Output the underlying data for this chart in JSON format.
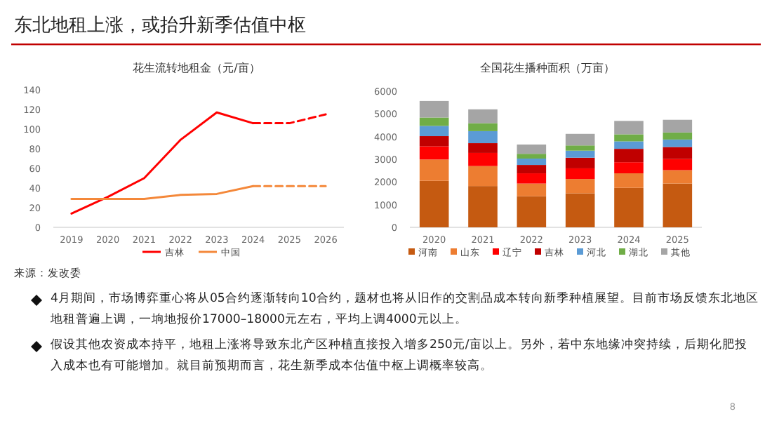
{
  "chart_data": [
    {
      "type": "line",
      "title": "花生流转地租金（元/亩）",
      "categories": [
        "2019",
        "2020",
        "2021",
        "2022",
        "2023",
        "2024",
        "2025",
        "2026"
      ],
      "series": [
        {
          "name": "吉林",
          "color": "#ff0000",
          "values": [
            14,
            31,
            50,
            89,
            117,
            106,
            null,
            null
          ]
        },
        {
          "color": "#ff0000",
          "line_style": "dashed",
          "values": [
            null,
            null,
            null,
            null,
            null,
            106,
            106,
            115
          ]
        },
        {
          "name": "中国",
          "color": "#f4883a",
          "values": [
            29,
            29,
            29,
            33,
            34,
            42,
            null,
            null
          ]
        },
        {
          "color": "#f4883a",
          "line_style": "dashed",
          "values": [
            null,
            null,
            null,
            null,
            null,
            42,
            42,
            42
          ]
        }
      ],
      "ylim": [
        0,
        140
      ],
      "yticks": [
        0,
        20,
        40,
        60,
        80,
        100,
        120,
        140
      ],
      "legend": "bottom",
      "marker": "none",
      "annotations": [
        "来源：发改委"
      ]
    },
    {
      "type": "bar",
      "title": "全国花生播种面积（万亩）",
      "categories": [
        "2020",
        "2021",
        "2022",
        "2023",
        "2024",
        "2025"
      ],
      "stacked": true,
      "series": [
        {
          "name": "河南",
          "color": "#c55a11",
          "values": [
            2050,
            1820,
            1370,
            1500,
            1740,
            1930
          ]
        },
        {
          "name": "山东",
          "color": "#ed7d31",
          "values": [
            940,
            880,
            560,
            630,
            640,
            590
          ]
        },
        {
          "name": "辽宁",
          "color": "#ff0000",
          "values": [
            580,
            580,
            450,
            470,
            490,
            490
          ]
        },
        {
          "name": "吉林",
          "color": "#c00000",
          "values": [
            450,
            430,
            370,
            470,
            590,
            530
          ]
        },
        {
          "name": "河北",
          "color": "#5b9bd5",
          "values": [
            450,
            530,
            280,
            310,
            330,
            330
          ]
        },
        {
          "name": "湖北",
          "color": "#70ad47",
          "values": [
            370,
            350,
            210,
            230,
            310,
            310
          ]
        },
        {
          "name": "其他",
          "color": "#a5a5a5",
          "values": [
            730,
            610,
            410,
            510,
            590,
            560
          ]
        }
      ],
      "ylim": [
        0,
        6000
      ],
      "yticks": [
        0,
        1000,
        2000,
        3000,
        4000,
        5000,
        6000
      ],
      "legend": "bottom"
    },
    {
      "type": "other",
      "title": "东北地租上涨，或抬升新季估值中枢",
      "annotations": [
        "4月期间，市场博弈重心将从05合约逐渐转向10合约，题材也将从旧作的交割品成本转向新季种植展望。目前市场反馈东北地区地租普遍上调，一垧地报价17000–18000元左右，平均上调4000元以上。",
        "假设其他农资成本持平，地租上涨将导致东北产区种植直接投入增多250元/亩以上。另外，若中东地缘冲突持续，后期化肥投入成本也有可能增加。就目前预期而言，花生新季成本估值中枢上调概率较高。",
        "8"
      ]
    }
  ]
}
